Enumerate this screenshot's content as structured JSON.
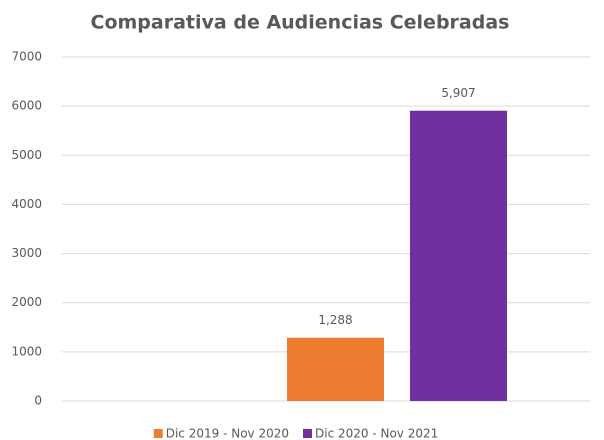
{
  "chart_data": {
    "type": "bar",
    "title": "Comparativa de Audiencias Celebradas",
    "categories": [
      null
    ],
    "series": [
      {
        "name": "Dic 2019 - Nov 2020",
        "color": "#ed7d31",
        "values": [
          1288
        ],
        "value_labels": [
          "1,288"
        ]
      },
      {
        "name": "Dic 2020 - Nov 2021",
        "color": "#7030a0",
        "values": [
          5907
        ],
        "value_labels": [
          "5,907"
        ]
      }
    ],
    "ylim": [
      0,
      7000
    ],
    "yticks": [
      0,
      1000,
      2000,
      3000,
      4000,
      5000,
      6000,
      7000
    ],
    "grid": true,
    "legend": "bottom"
  }
}
